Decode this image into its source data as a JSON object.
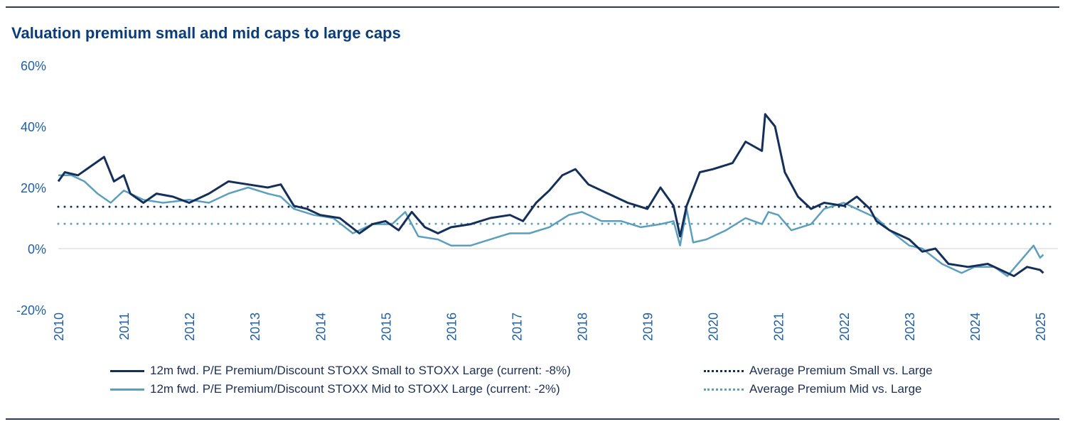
{
  "chart_data": {
    "type": "line",
    "title": "Valuation premium small and mid caps to large caps",
    "ylim": [
      -20,
      60
    ],
    "xlim": [
      2010,
      2025
    ],
    "y_ticks": [
      "60%",
      "40%",
      "20%",
      "0%",
      "-20%"
    ],
    "y_tick_values": [
      60,
      40,
      20,
      0,
      -20
    ],
    "x_ticks": [
      "2010",
      "2011",
      "2012",
      "2013",
      "2014",
      "2015",
      "2016",
      "2017",
      "2018",
      "2019",
      "2020",
      "2021",
      "2022",
      "2023",
      "2024",
      "2025"
    ],
    "grid": false,
    "legend_placement": "bottom",
    "series": [
      {
        "name": "12m fwd. P/E Premium/Discount STOXX Small to STOXX Large (current: -8%)",
        "color": "#14305a",
        "style": "solid",
        "x": [
          2010.0,
          2010.1,
          2010.3,
          2010.5,
          2010.7,
          2010.85,
          2011.0,
          2011.1,
          2011.3,
          2011.5,
          2011.75,
          2012.0,
          2012.3,
          2012.6,
          2012.9,
          2013.2,
          2013.4,
          2013.6,
          2013.8,
          2014.0,
          2014.3,
          2014.6,
          2014.8,
          2015.0,
          2015.2,
          2015.4,
          2015.6,
          2015.8,
          2016.0,
          2016.3,
          2016.6,
          2016.9,
          2017.1,
          2017.3,
          2017.5,
          2017.7,
          2017.9,
          2018.1,
          2018.4,
          2018.7,
          2019.0,
          2019.2,
          2019.4,
          2019.5,
          2019.6,
          2019.8,
          2020.0,
          2020.3,
          2020.5,
          2020.75,
          2020.8,
          2020.95,
          2021.1,
          2021.3,
          2021.5,
          2021.7,
          2022.0,
          2022.2,
          2022.4,
          2022.5,
          2022.7,
          2023.0,
          2023.2,
          2023.4,
          2023.6,
          2023.9,
          2024.2,
          2024.4,
          2024.6,
          2024.8,
          2025.0,
          2025.05
        ],
        "y": [
          22,
          25,
          24,
          27,
          30,
          22,
          24,
          18,
          15,
          18,
          17,
          15,
          18,
          22,
          21,
          20,
          21,
          14,
          13,
          11,
          10,
          5,
          8,
          9,
          6,
          12,
          7,
          5,
          7,
          8,
          10,
          11,
          9,
          15,
          19,
          24,
          26,
          21,
          18,
          15,
          13,
          20,
          14,
          4,
          14,
          25,
          26,
          28,
          35,
          32,
          44,
          40,
          25,
          17,
          13,
          15,
          14,
          17,
          13,
          9,
          6,
          3,
          -1,
          0,
          -5,
          -6,
          -5,
          -7,
          -9,
          -6,
          -7,
          -8
        ]
      },
      {
        "name": "12m fwd. P/E Premium/Discount STOXX Mid to STOXX Large (current: -2%)",
        "color": "#5b9fbf",
        "style": "solid",
        "x": [
          2010.0,
          2010.2,
          2010.4,
          2010.6,
          2010.8,
          2011.0,
          2011.3,
          2011.6,
          2012.0,
          2012.3,
          2012.6,
          2012.9,
          2013.2,
          2013.4,
          2013.6,
          2013.9,
          2014.2,
          2014.5,
          2014.8,
          2015.1,
          2015.3,
          2015.5,
          2015.8,
          2016.0,
          2016.3,
          2016.6,
          2016.9,
          2017.2,
          2017.5,
          2017.8,
          2018.0,
          2018.3,
          2018.6,
          2018.9,
          2019.2,
          2019.4,
          2019.5,
          2019.6,
          2019.7,
          2019.9,
          2020.2,
          2020.5,
          2020.75,
          2020.85,
          2021.0,
          2021.2,
          2021.5,
          2021.7,
          2022.0,
          2022.2,
          2022.5,
          2022.7,
          2023.0,
          2023.2,
          2023.5,
          2023.8,
          2024.0,
          2024.3,
          2024.5,
          2024.7,
          2024.9,
          2025.0,
          2025.05
        ],
        "y": [
          24,
          24,
          22,
          18,
          15,
          19,
          16,
          15,
          16,
          15,
          18,
          20,
          18,
          17,
          13,
          11,
          10,
          5,
          8,
          8,
          12,
          4,
          3,
          1,
          1,
          3,
          5,
          5,
          7,
          11,
          12,
          9,
          9,
          7,
          8,
          9,
          1,
          13,
          2,
          3,
          6,
          10,
          8,
          12,
          11,
          6,
          8,
          13,
          15,
          13,
          10,
          6,
          1,
          0,
          -5,
          -8,
          -6,
          -6,
          -9,
          -4,
          1,
          -3,
          -2
        ]
      },
      {
        "name": "Average Premium Small vs. Large",
        "color": "#14305a",
        "style": "dotted",
        "y_constant": 13.7
      },
      {
        "name": "Average Premium Mid vs. Large",
        "color": "#5b9fbf",
        "style": "dotted",
        "y_constant": 8.1
      }
    ]
  }
}
